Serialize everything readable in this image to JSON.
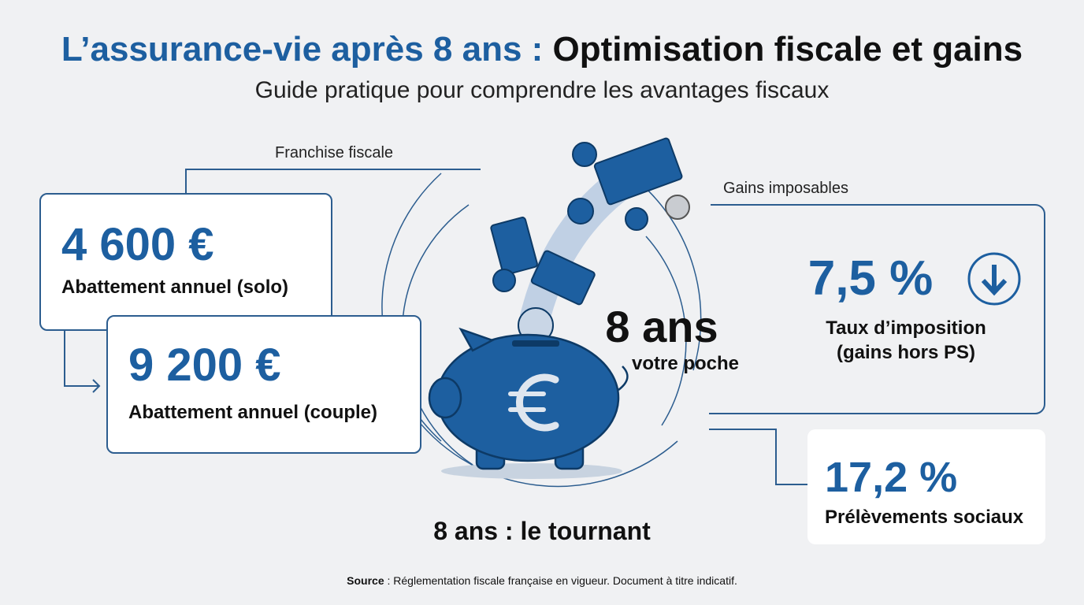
{
  "header": {
    "title_part1": "L’assurance-vie après 8 ans :",
    "title_part2": "Optimisation fiscale et gains",
    "subtitle": "Guide pratique pour comprendre les avantages fiscaux"
  },
  "left": {
    "label": "Franchise fiscale",
    "cards": [
      {
        "amount": "4 600 €",
        "label": "Abattement annuel (solo)"
      },
      {
        "amount": "9 200 €",
        "label": "Abattement annuel (couple)"
      }
    ]
  },
  "center": {
    "big": "8 ans",
    "small": "votre poche",
    "caption": "8 ans : le tournant"
  },
  "right": {
    "label": "Gains imposables",
    "rate": {
      "amount": "7,5 %",
      "line1": "Taux d’imposition",
      "line2": "(gains hors PS)"
    },
    "social": {
      "amount": "17,2 %",
      "label": "Prélèvements sociaux"
    }
  },
  "footer": {
    "source_label": "Source",
    "source_text": " : Réglementation fiscale française en vigueur. Document à titre indicatif."
  }
}
